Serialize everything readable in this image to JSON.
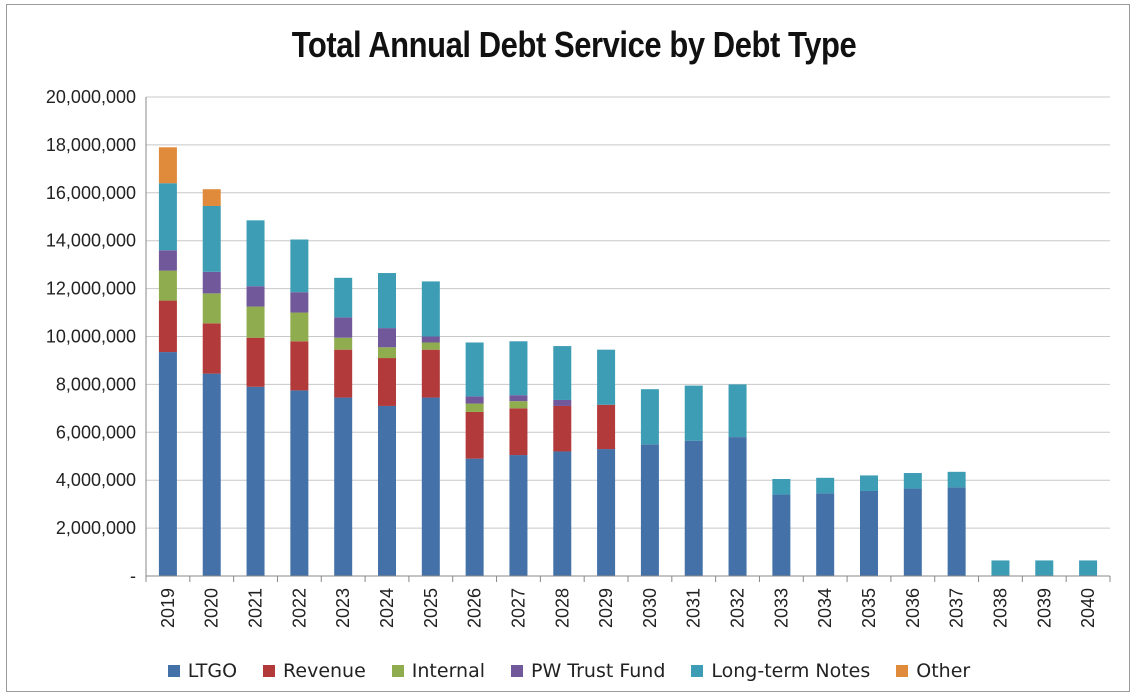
{
  "chart_data": {
    "type": "bar",
    "stacked": true,
    "title": "Total Annual Debt Service by Debt Type",
    "categories": [
      "2019",
      "2020",
      "2021",
      "2022",
      "2023",
      "2024",
      "2025",
      "2026",
      "2027",
      "2028",
      "2029",
      "2030",
      "2031",
      "2032",
      "2033",
      "2034",
      "2035",
      "2036",
      "2037",
      "2038",
      "2039",
      "2040"
    ],
    "ylim": [
      0,
      20000000
    ],
    "yticks": [
      0,
      2000000,
      4000000,
      6000000,
      8000000,
      10000000,
      12000000,
      14000000,
      16000000,
      18000000,
      20000000
    ],
    "ytick_labels": [
      "-",
      "2,000,000",
      "4,000,000",
      "6,000,000",
      "8,000,000",
      "10,000,000",
      "12,000,000",
      "14,000,000",
      "16,000,000",
      "18,000,000",
      "20,000,000"
    ],
    "grid": true,
    "legend_position": "bottom",
    "series": [
      {
        "name": "LTGO",
        "color": "#4472a8",
        "values": [
          9350000,
          8450000,
          7900000,
          7750000,
          7450000,
          7100000,
          7450000,
          4900000,
          5050000,
          5200000,
          5300000,
          5500000,
          5650000,
          5800000,
          3400000,
          3450000,
          3550000,
          3650000,
          3700000,
          0,
          0,
          0
        ]
      },
      {
        "name": "Revenue",
        "color": "#b33a3a",
        "values": [
          2150000,
          2100000,
          2050000,
          2050000,
          2000000,
          2000000,
          2000000,
          1950000,
          1950000,
          1900000,
          1850000,
          0,
          0,
          0,
          0,
          0,
          0,
          0,
          0,
          0,
          0,
          0
        ]
      },
      {
        "name": "Internal",
        "color": "#8fad4f",
        "values": [
          1250000,
          1250000,
          1300000,
          1200000,
          500000,
          450000,
          300000,
          350000,
          300000,
          0,
          0,
          0,
          0,
          0,
          0,
          0,
          0,
          0,
          0,
          0,
          0,
          0
        ]
      },
      {
        "name": "PW Trust Fund",
        "color": "#71589a",
        "values": [
          850000,
          900000,
          850000,
          850000,
          850000,
          800000,
          250000,
          300000,
          250000,
          250000,
          0,
          0,
          0,
          0,
          0,
          0,
          0,
          0,
          0,
          0,
          0,
          0
        ]
      },
      {
        "name": "Long-term Notes",
        "color": "#3d9db5",
        "values": [
          2800000,
          2750000,
          2750000,
          2200000,
          1650000,
          2300000,
          2300000,
          2250000,
          2250000,
          2250000,
          2300000,
          2300000,
          2300000,
          2200000,
          650000,
          650000,
          650000,
          650000,
          650000,
          650000,
          650000,
          650000
        ]
      },
      {
        "name": "Other",
        "color": "#e08a3c",
        "values": [
          1500000,
          700000,
          0,
          0,
          0,
          0,
          0,
          0,
          0,
          0,
          0,
          0,
          0,
          0,
          0,
          0,
          0,
          0,
          0,
          0,
          0,
          0
        ]
      }
    ]
  }
}
